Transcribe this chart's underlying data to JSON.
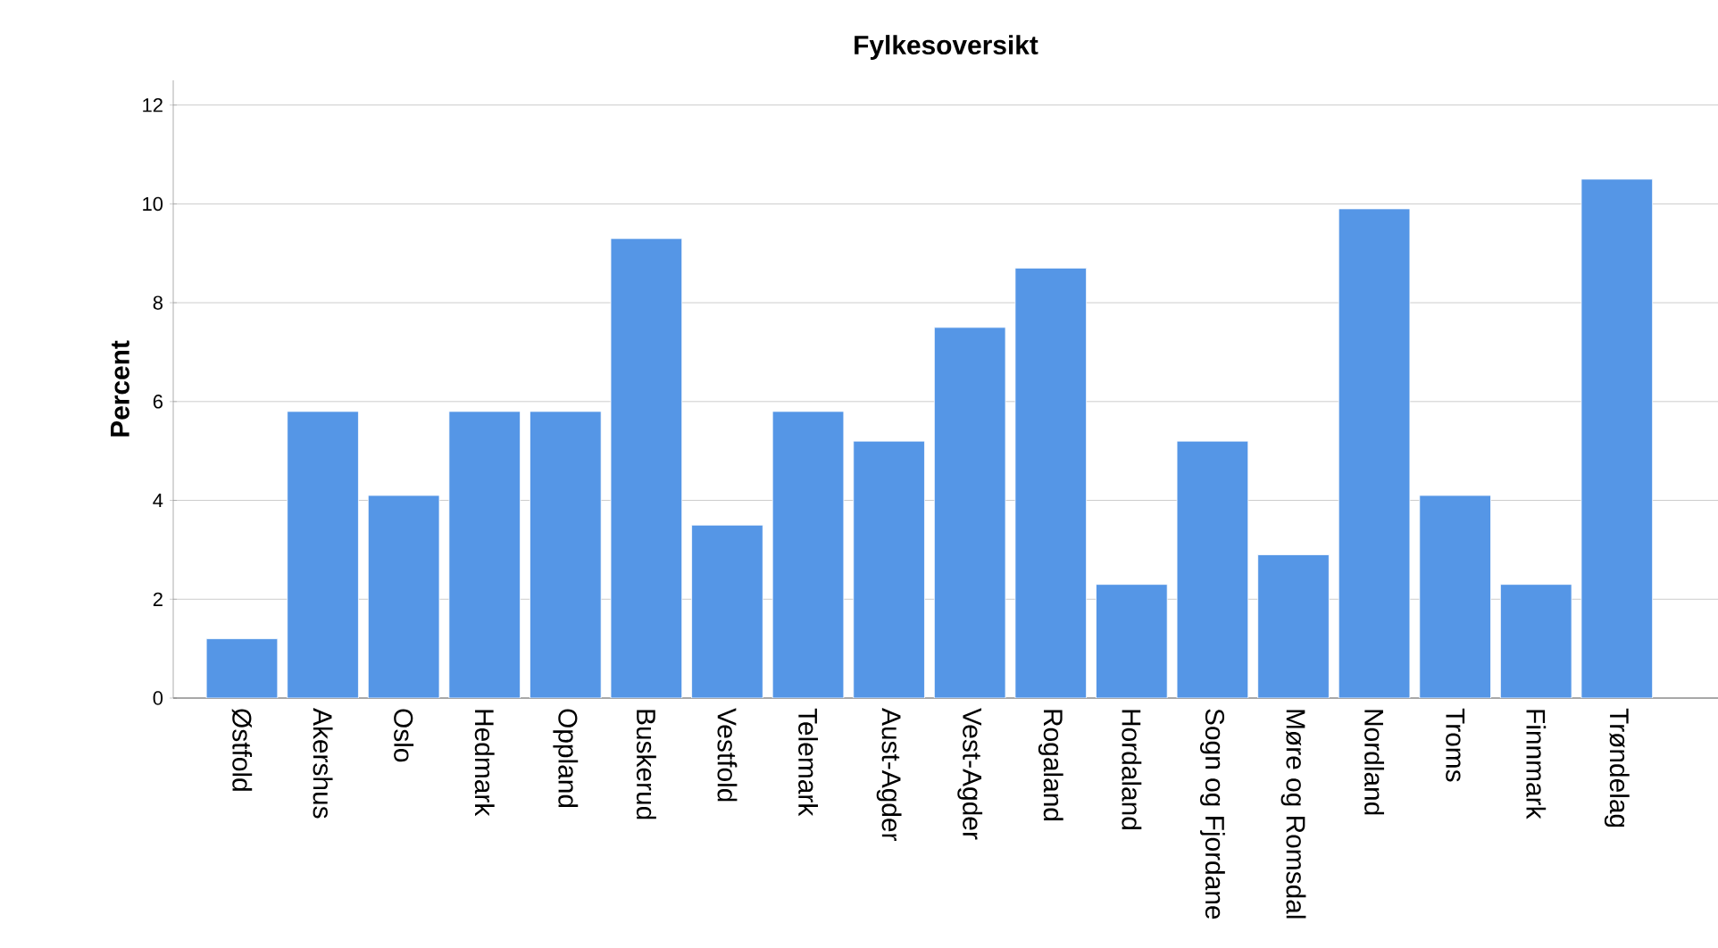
{
  "chart_data": {
    "type": "bar",
    "title": "Fylkesoversikt",
    "ylabel": "Percent",
    "categories": [
      "Østfold",
      "Akershus",
      "Oslo",
      "Hedmark",
      "Oppland",
      "Buskerud",
      "Vestfold",
      "Telemark",
      "Aust-Agder",
      "Vest-Agder",
      "Rogaland",
      "Hordaland",
      "Sogn og Fjordane",
      "Møre og Romsdal",
      "Nordland",
      "Troms",
      "Finnmark",
      "Trøndelag"
    ],
    "values": [
      1.2,
      5.8,
      4.1,
      5.8,
      5.8,
      9.3,
      3.5,
      5.8,
      5.2,
      7.5,
      8.7,
      2.3,
      5.2,
      2.9,
      9.9,
      4.1,
      2.3,
      10.5
    ],
    "color": "#5596e6",
    "ylim": [
      0,
      12.5
    ],
    "yticks": [
      0,
      2,
      4,
      6,
      8,
      10,
      12
    ],
    "grid": "y"
  }
}
